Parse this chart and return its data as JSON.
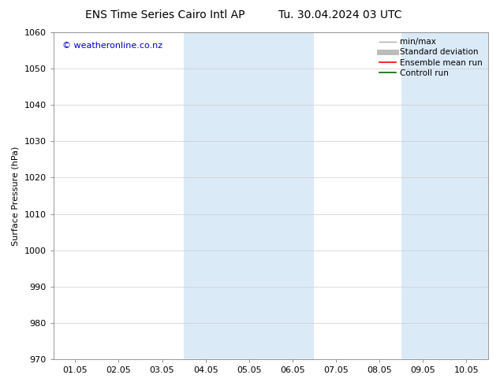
{
  "title_left": "ENS Time Series Cairo Intl AP",
  "title_right": "Tu. 30.04.2024 03 UTC",
  "ylabel": "Surface Pressure (hPa)",
  "ylim": [
    970,
    1060
  ],
  "yticks": [
    970,
    980,
    990,
    1000,
    1010,
    1020,
    1030,
    1040,
    1050,
    1060
  ],
  "xtick_labels": [
    "01.05",
    "02.05",
    "03.05",
    "04.05",
    "05.05",
    "06.05",
    "07.05",
    "08.05",
    "09.05",
    "10.05"
  ],
  "shaded_bands": [
    {
      "xmin": 3,
      "xmax": 5,
      "color": "#dbeaf7"
    },
    {
      "xmin": 8,
      "xmax": 9,
      "color": "#dbeaf7"
    }
  ],
  "legend_items": [
    {
      "label": "min/max",
      "color": "#aaaaaa",
      "lw": 1.0
    },
    {
      "label": "Standard deviation",
      "color": "#bbbbbb",
      "lw": 5
    },
    {
      "label": "Ensemble mean run",
      "color": "#ff0000",
      "lw": 1.2
    },
    {
      "label": "Controll run",
      "color": "#006600",
      "lw": 1.2
    }
  ],
  "watermark": "© weatheronline.co.nz",
  "watermark_color": "#0000cc",
  "background_color": "#ffffff",
  "plot_bg_color": "#ffffff",
  "grid_color": "#cccccc",
  "title_fontsize": 10,
  "ylabel_fontsize": 8,
  "tick_fontsize": 8,
  "legend_fontsize": 7.5,
  "watermark_fontsize": 8
}
